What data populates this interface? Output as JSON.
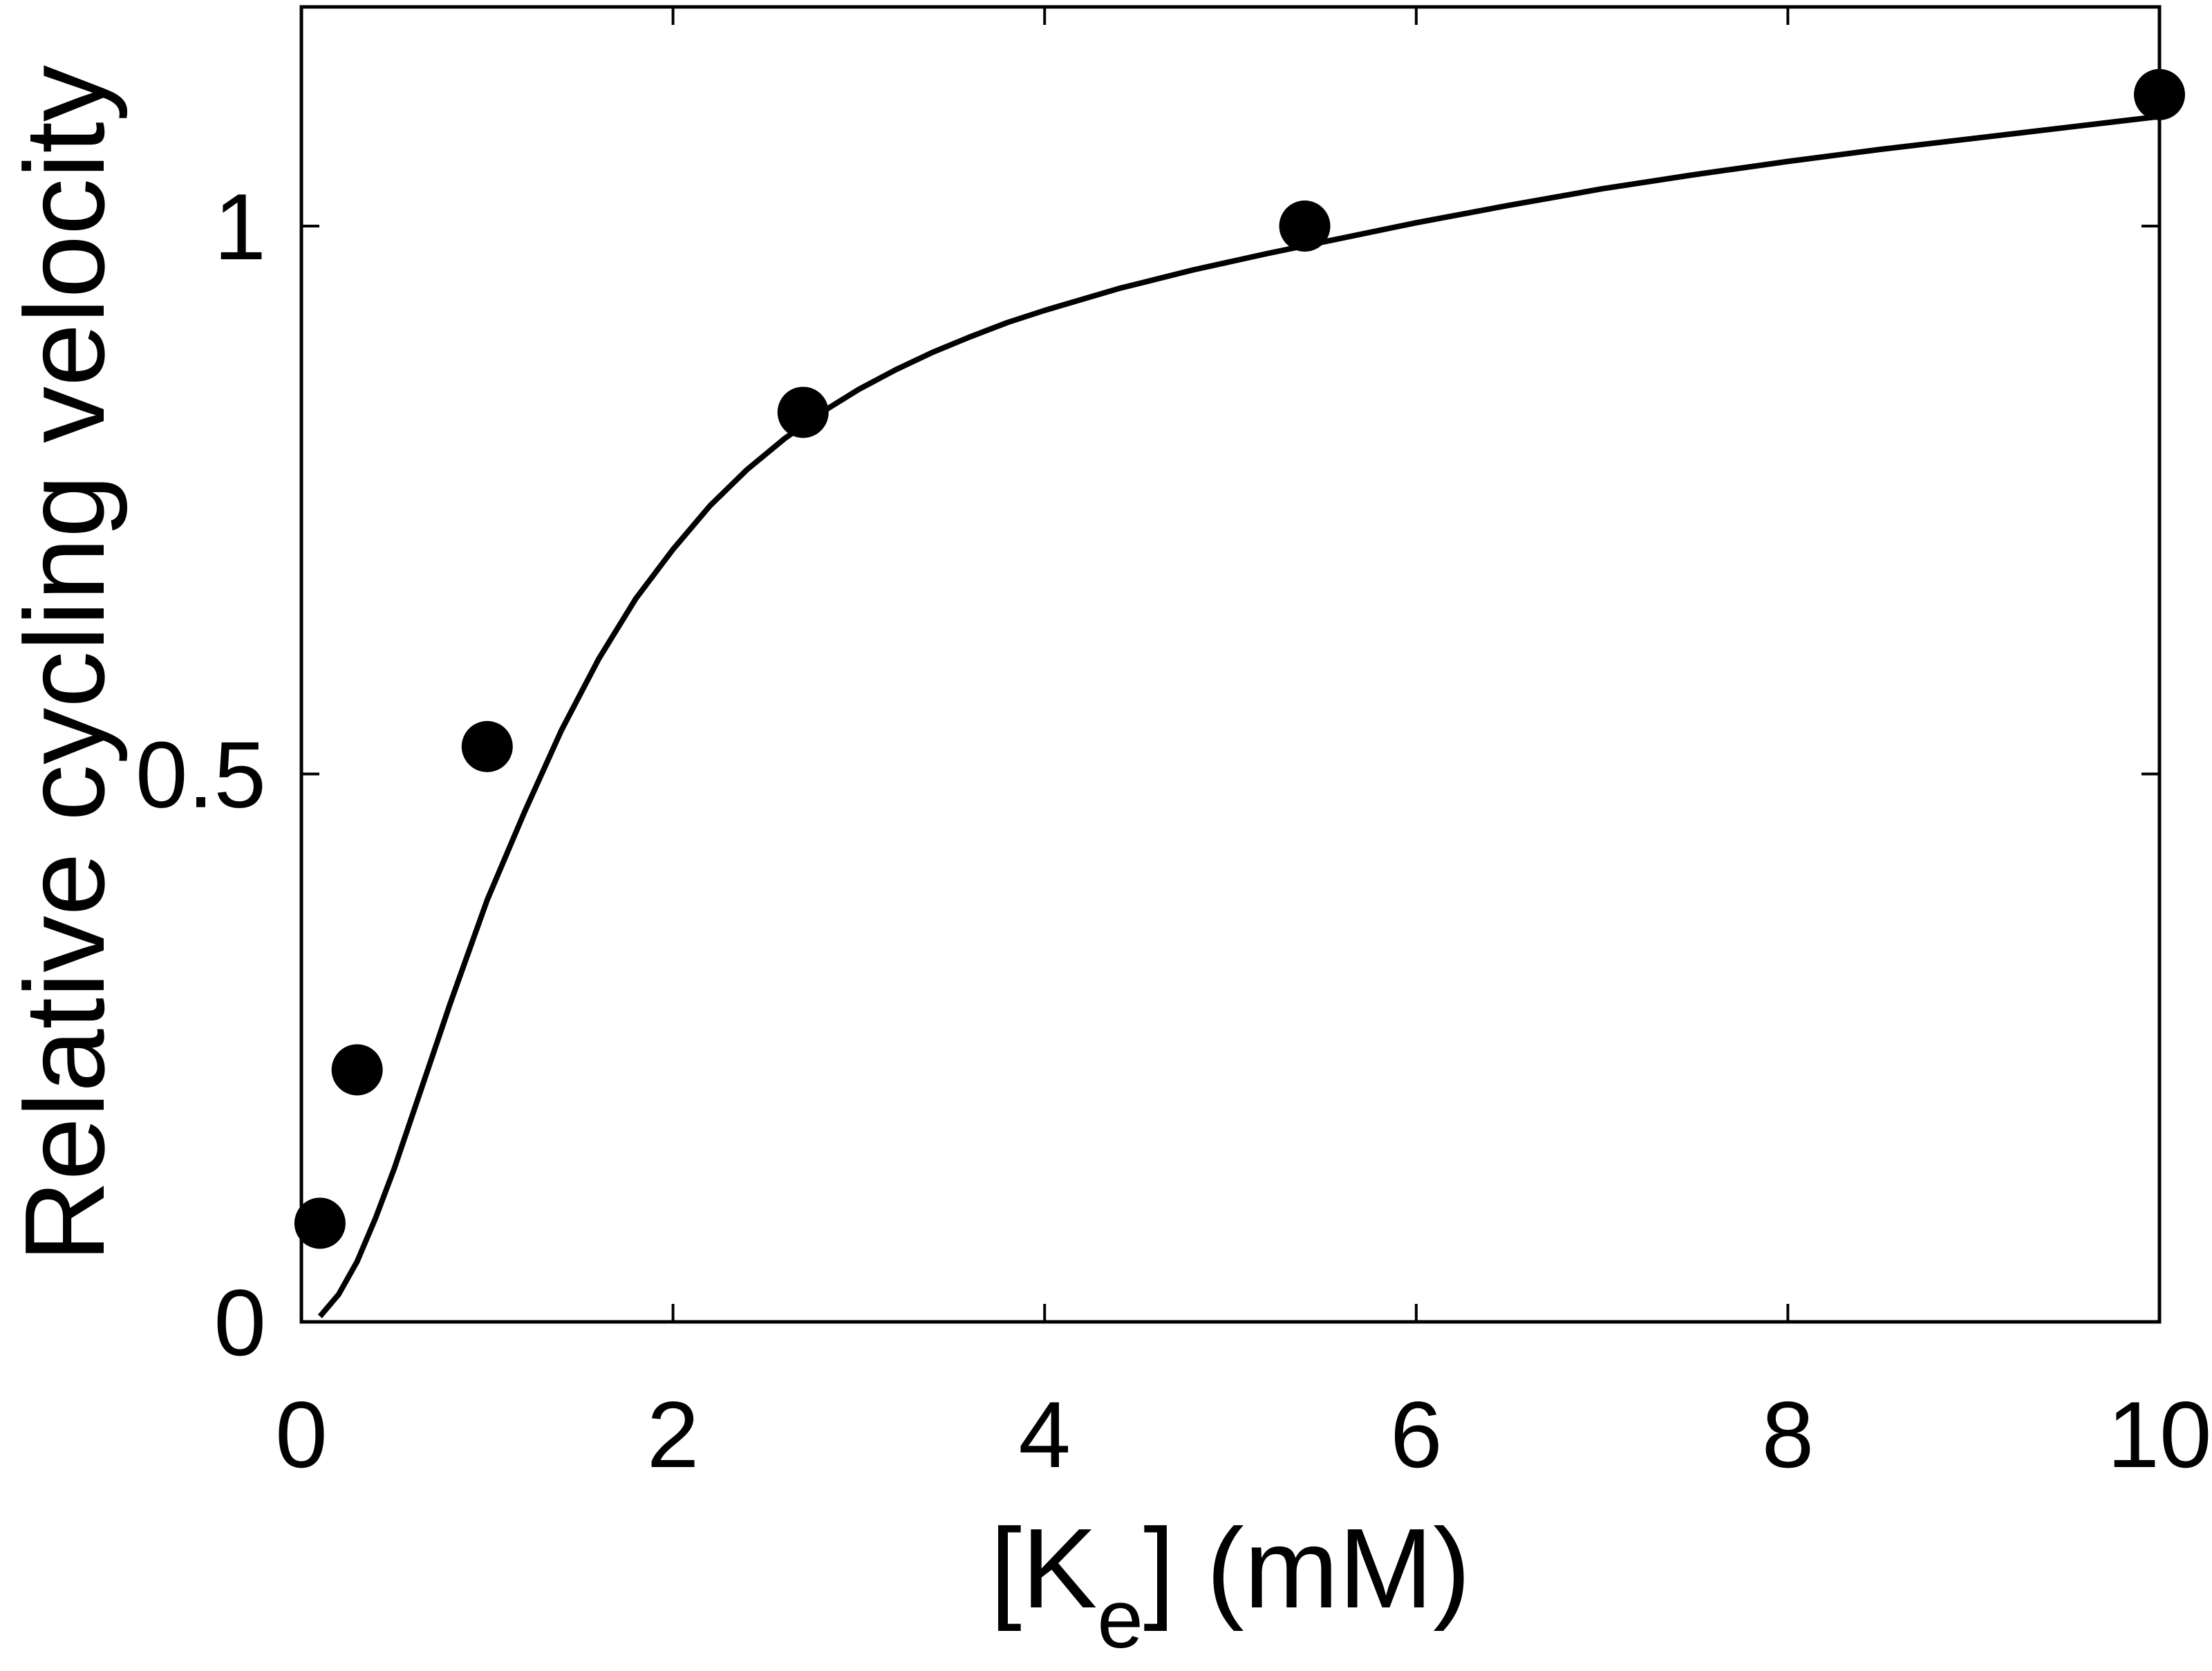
{
  "chart_data": {
    "type": "scatter",
    "title": "",
    "xlabel": {
      "prefix": "[K",
      "sub": "e",
      "suffix": "] (mM)"
    },
    "ylabel": "Relative cycling velocity",
    "xlim": [
      0,
      10
    ],
    "ylim": [
      0,
      1.2
    ],
    "xticks": [
      {
        "value": 0,
        "label": "0"
      },
      {
        "value": 2,
        "label": "2"
      },
      {
        "value": 4,
        "label": "4"
      },
      {
        "value": 6,
        "label": "6"
      },
      {
        "value": 8,
        "label": "8"
      },
      {
        "value": 10,
        "label": "10"
      }
    ],
    "yticks": [
      {
        "value": 0,
        "label": "0"
      },
      {
        "value": 0.5,
        "label": "0.5"
      },
      {
        "value": 1,
        "label": "1"
      }
    ],
    "grid": false,
    "series": [
      {
        "type": "scatter",
        "x": [
          0.1,
          0.3,
          1.0,
          2.7,
          5.4,
          10.0
        ],
        "y": [
          0.09,
          0.23,
          0.525,
          0.83,
          1.0,
          1.12
        ]
      },
      {
        "type": "line",
        "x": [
          0.1,
          0.2,
          0.3,
          0.4,
          0.5,
          0.6,
          0.7,
          0.8,
          1.0,
          1.2,
          1.4,
          1.6,
          1.8,
          2.0,
          2.2,
          2.4,
          2.6,
          2.8,
          3.0,
          3.2,
          3.4,
          3.6,
          3.8,
          4.0,
          4.4,
          4.8,
          5.2,
          5.6,
          6.0,
          6.5,
          7.0,
          7.5,
          8.0,
          8.5,
          9.0,
          9.5,
          10.0
        ],
        "y": [
          0.005,
          0.025,
          0.055,
          0.095,
          0.14,
          0.19,
          0.24,
          0.29,
          0.385,
          0.465,
          0.54,
          0.605,
          0.66,
          0.705,
          0.745,
          0.778,
          0.806,
          0.83,
          0.851,
          0.869,
          0.885,
          0.899,
          0.912,
          0.923,
          0.943,
          0.96,
          0.975,
          0.989,
          1.003,
          1.019,
          1.034,
          1.047,
          1.059,
          1.07,
          1.08,
          1.09,
          1.1
        ]
      }
    ],
    "colors": {
      "line": "#000000",
      "marker": "#000000",
      "frame": "#000000"
    }
  }
}
